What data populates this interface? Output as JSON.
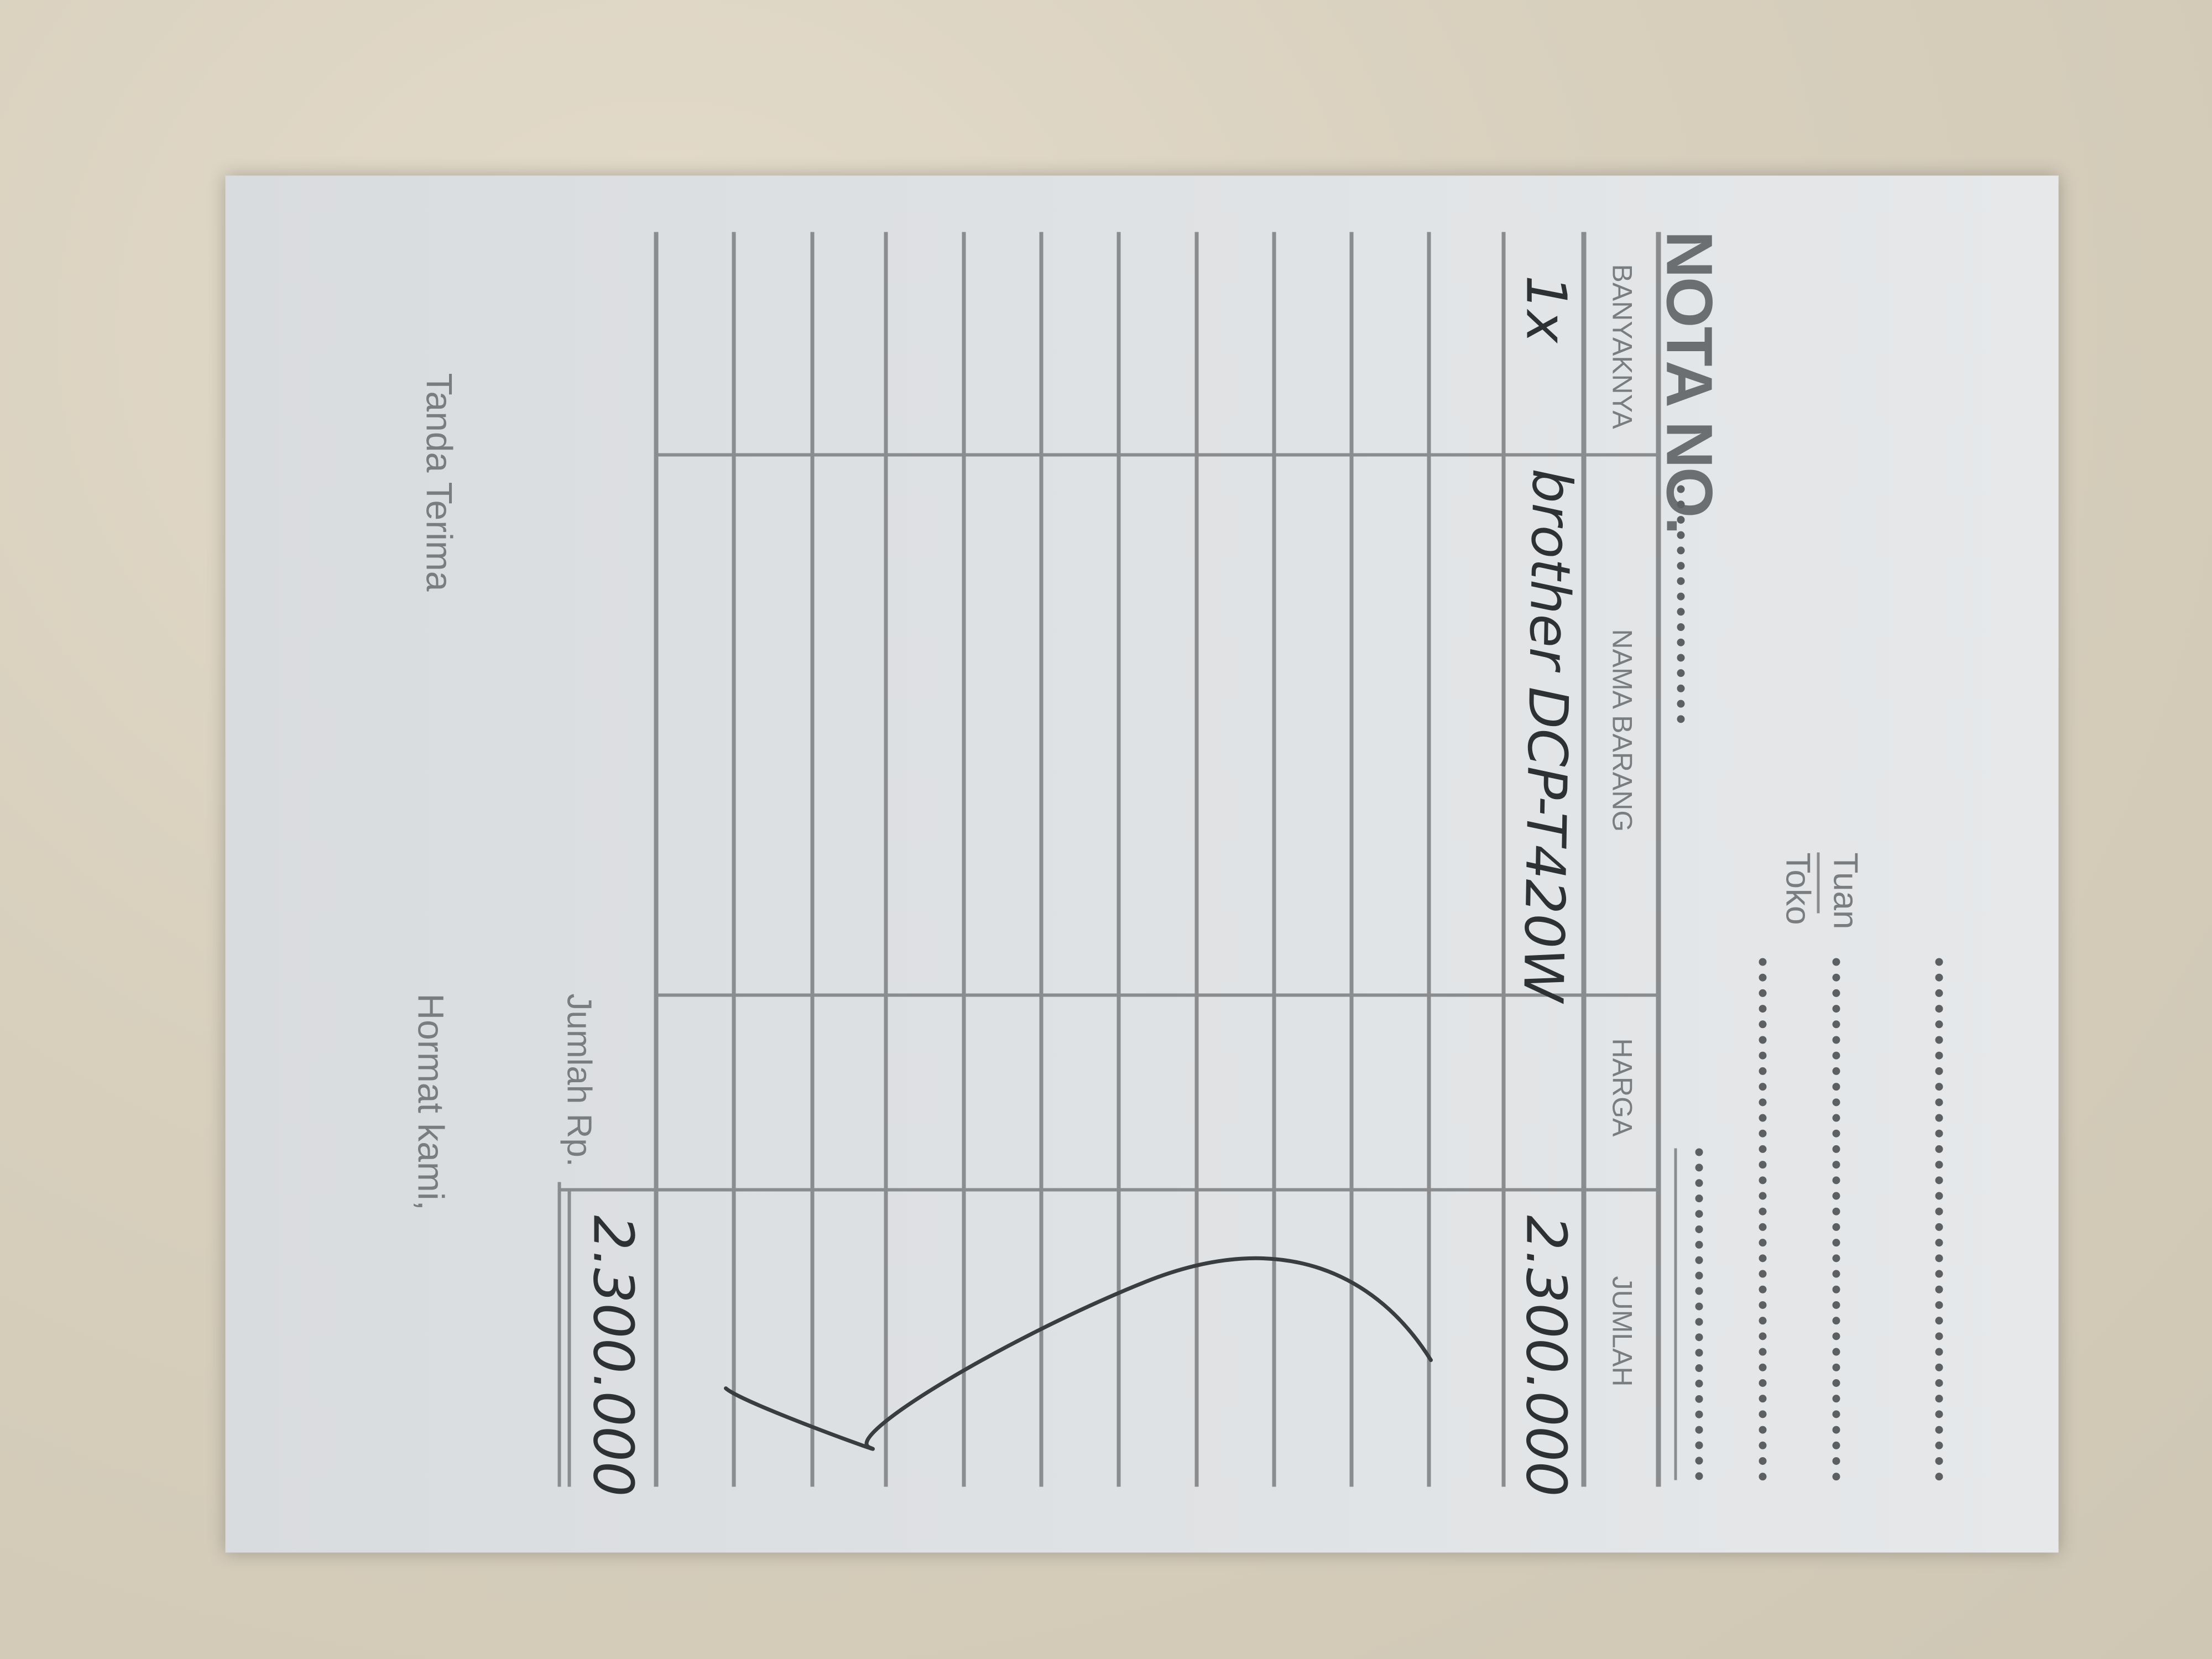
{
  "form": {
    "title": "NOTA NO.",
    "title_dots": "..........",
    "tuan_label": "Tuan",
    "toko_label": "Toko"
  },
  "table": {
    "headers": [
      "BANYAKNYA",
      "NAMA BARANG",
      "HARGA",
      "JUMLAH"
    ],
    "rows": [
      {
        "banyaknya": "1x",
        "nama_barang": "brother DCP-T420W",
        "harga": "",
        "jumlah": "2.300.000"
      }
    ],
    "empty_rows": 11
  },
  "totals": {
    "label": "Jumlah Rp.",
    "value": "2.300.000"
  },
  "footer": {
    "left_label": "Tanda Terima",
    "right_label": "Hormat kami,"
  },
  "colors": {
    "paper": "#e2e5e7",
    "print_ink": "#7a7d80",
    "handwriting_ink": "#2e3133",
    "background": "#d8cfbd"
  }
}
